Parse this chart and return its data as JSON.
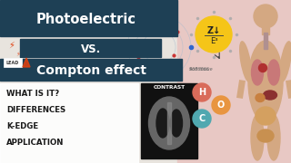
{
  "bg_left_color": "#e8e4de",
  "bg_right_color": "#e8c8c4",
  "banner1_color": "#1e4055",
  "banner2_color": "#1e4055",
  "banner3_color": "#1e4055",
  "title1": "Photoelectric",
  "title2": "VS.",
  "title3": "Compton effect",
  "bullet1": "WHAT IS IT?",
  "bullet2": "DIFFERENCES",
  "bullet3": "K-EDGE",
  "bullet4": "APPLICATION",
  "contrast_label": "CONTRAST",
  "sun_color": "#f5c518",
  "h_color": "#d96b5a",
  "o_color": "#e89540",
  "c_color": "#50a8b0",
  "lead_label": "LEAD",
  "lightning_color": "#e04010",
  "white": "#ffffff",
  "dark": "#1a1a1a",
  "gray": "#888888",
  "orbit_color": "#bbbbbb",
  "dot_color": "#cc3333",
  "skin_color": "#d4a882",
  "organ_pink": "#c87878",
  "organ_red": "#b03030",
  "organ_orange": "#c88040",
  "organ_gut": "#d4a060",
  "organ_dark": "#8b3030",
  "soft_tissue_color": "#666666"
}
